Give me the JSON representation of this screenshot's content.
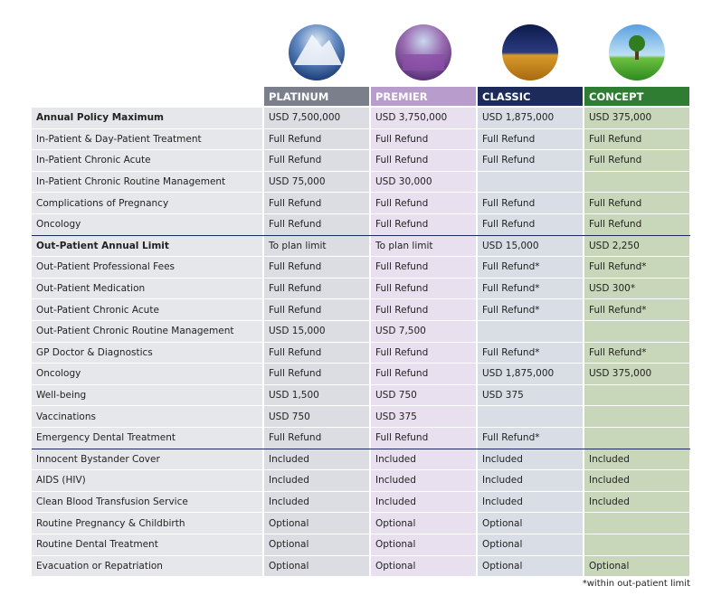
{
  "table": {
    "columns": [
      "PLATINUM",
      "PREMIER",
      "CLASSIC",
      "CONCEPT"
    ],
    "sections": [
      {
        "rows": [
          {
            "label": "Annual Policy Maximum",
            "bold": true,
            "cells": [
              "USD 7,500,000",
              "USD 3,750,000",
              "USD 1,875,000",
              "USD 375,000"
            ]
          },
          {
            "label": "In-Patient & Day-Patient Treatment",
            "cells": [
              "Full Refund",
              "Full Refund",
              "Full Refund",
              "Full Refund"
            ]
          },
          {
            "label": "In-Patient Chronic Acute",
            "cells": [
              "Full Refund",
              "Full Refund",
              "Full Refund",
              "Full Refund"
            ]
          },
          {
            "label": "In-Patient Chronic Routine Management",
            "cells": [
              "USD 75,000",
              "USD 30,000",
              null,
              null
            ]
          },
          {
            "label": "Complications of Pregnancy",
            "cells": [
              "Full Refund",
              "Full Refund",
              "Full Refund",
              "Full Refund"
            ]
          },
          {
            "label": "Oncology",
            "cells": [
              "Full Refund",
              "Full Refund",
              "Full Refund",
              "Full Refund"
            ]
          }
        ]
      },
      {
        "rows": [
          {
            "label": "Out-Patient Annual Limit",
            "bold": true,
            "cells": [
              "To plan limit",
              "To plan limit",
              "USD 15,000",
              "USD 2,250"
            ]
          },
          {
            "label": "Out-Patient Professional Fees",
            "cells": [
              "Full Refund",
              "Full Refund",
              "Full Refund*",
              "Full Refund*"
            ]
          },
          {
            "label": "Out-Patient Medication",
            "cells": [
              "Full Refund",
              "Full Refund",
              "Full Refund*",
              "USD 300*"
            ]
          },
          {
            "label": "Out-Patient Chronic Acute",
            "cells": [
              "Full Refund",
              "Full Refund",
              "Full Refund*",
              "Full Refund*"
            ]
          },
          {
            "label": "Out-Patient Chronic Routine Management",
            "cells": [
              "USD 15,000",
              "USD 7,500",
              null,
              null
            ]
          },
          {
            "label": "GP Doctor & Diagnostics",
            "cells": [
              "Full Refund",
              "Full Refund",
              "Full Refund*",
              "Full Refund*"
            ]
          },
          {
            "label": "Oncology",
            "cells": [
              "Full Refund",
              "Full Refund",
              "USD 1,875,000",
              "USD 375,000"
            ]
          },
          {
            "label": "Well-being",
            "cells": [
              "USD 1,500",
              "USD 750",
              "USD 375",
              null
            ]
          },
          {
            "label": "Vaccinations",
            "cells": [
              "USD 750",
              "USD 375",
              null,
              null
            ]
          },
          {
            "label": "Emergency Dental Treatment",
            "cells": [
              "Full Refund",
              "Full Refund",
              "Full Refund*",
              null
            ]
          }
        ]
      },
      {
        "rows": [
          {
            "label": "Innocent Bystander Cover",
            "cells": [
              "Included",
              "Included",
              "Included",
              "Included"
            ]
          },
          {
            "label": "AIDS (HIV)",
            "cells": [
              "Included",
              "Included",
              "Included",
              "Included"
            ]
          },
          {
            "label": "Clean Blood Transfusion Service",
            "cells": [
              "Included",
              "Included",
              "Included",
              "Included"
            ]
          },
          {
            "label": "Routine Pregnancy & Childbirth",
            "cells": [
              "Optional",
              "Optional",
              "Optional",
              null
            ]
          },
          {
            "label": "Routine Dental Treatment",
            "cells": [
              "Optional",
              "Optional",
              "Optional",
              null
            ]
          },
          {
            "label": "Evacuation or Repatriation",
            "cells": [
              "Optional",
              "Optional",
              "Optional",
              "Optional"
            ]
          }
        ]
      }
    ],
    "footnote": "*within out-patient limit"
  }
}
